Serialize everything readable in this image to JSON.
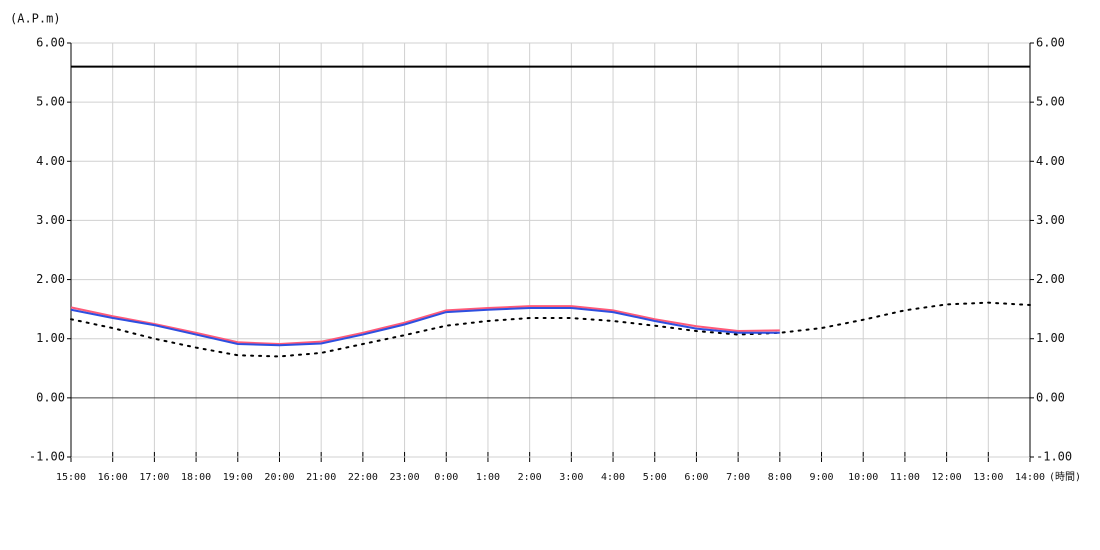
{
  "chart_data": {
    "type": "line",
    "y_label": "(A.P.m)",
    "x_label": "(時間)",
    "categories": [
      "15:00",
      "16:00",
      "17:00",
      "18:00",
      "19:00",
      "20:00",
      "21:00",
      "22:00",
      "23:00",
      "0:00",
      "1:00",
      "2:00",
      "3:00",
      "4:00",
      "5:00",
      "6:00",
      "7:00",
      "8:00",
      "9:00",
      "10:00",
      "11:00",
      "12:00",
      "13:00",
      "14:00"
    ],
    "series": [
      {
        "color": "#000000",
        "style": "dotted",
        "values": [
          1.33,
          1.18,
          1.0,
          0.85,
          0.72,
          0.7,
          0.76,
          0.91,
          1.06,
          1.22,
          1.3,
          1.35,
          1.35,
          1.3,
          1.22,
          1.13,
          1.07,
          1.1,
          1.18,
          1.32,
          1.48,
          1.58,
          1.61,
          1.57
        ]
      },
      {
        "color": "#ff5a78",
        "style": "solid",
        "values": [
          1.53,
          1.38,
          1.25,
          1.1,
          0.94,
          0.91,
          0.95,
          1.1,
          1.27,
          1.48,
          1.52,
          1.55,
          1.55,
          1.48,
          1.33,
          1.21,
          1.13,
          1.14,
          null,
          null,
          null,
          null,
          null,
          null
        ]
      },
      {
        "color": "#2e4fe0",
        "style": "solid",
        "values": [
          1.49,
          1.35,
          1.23,
          1.07,
          0.91,
          0.89,
          0.92,
          1.07,
          1.24,
          1.45,
          1.49,
          1.52,
          1.52,
          1.45,
          1.3,
          1.17,
          1.1,
          1.1,
          null,
          null,
          null,
          null,
          null,
          null
        ]
      }
    ],
    "hlines": [
      {
        "value": 5.6,
        "color": "#000000"
      }
    ],
    "ylim": [
      -1,
      6
    ],
    "yticks": [
      {
        "value": -1,
        "label": "-1.00"
      },
      {
        "value": 0,
        "label": "0.00"
      },
      {
        "value": 1,
        "label": "1.00"
      },
      {
        "value": 2,
        "label": "2.00"
      },
      {
        "value": 3,
        "label": "3.00"
      },
      {
        "value": 4,
        "label": "4.00"
      },
      {
        "value": 5,
        "label": "5.00"
      },
      {
        "value": 6,
        "label": "6.00"
      }
    ],
    "grid": true
  }
}
